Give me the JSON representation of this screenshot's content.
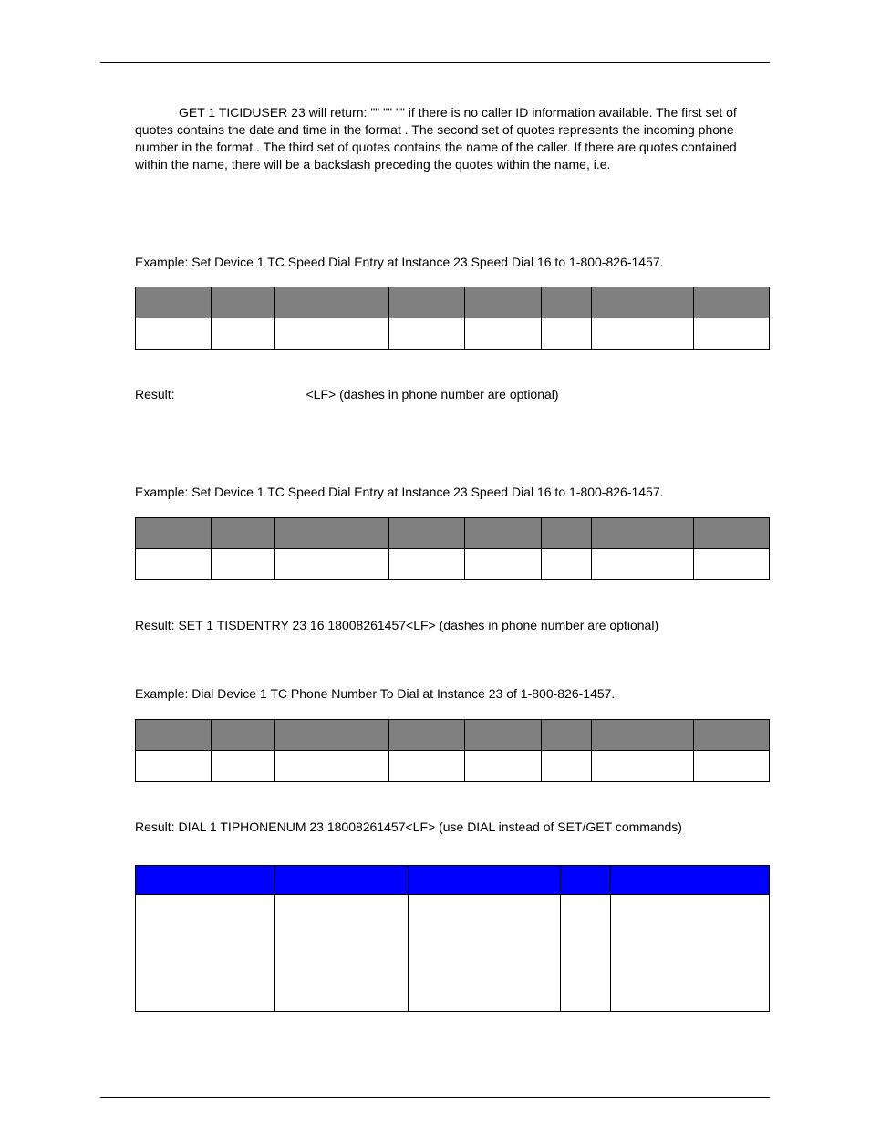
{
  "para1": "GET 1 TICIDUSER 23 will return: \"\" \"\" \"\" if there is no caller ID information available.  The first set of quotes contains the date and time in the format                     .  The second set of quotes represents the incoming phone number in the format                        .  The third set of quotes contains the name of the caller.   If there are quotes contained within the name, there will be a backslash preceding the quotes within the name, i.e.",
  "example1": "Example: Set Device 1 TC Speed Dial Entry at Instance 23 Speed Dial 16 to 1-800-826-1457.",
  "result1": "Result:                                     <LF> (dashes in phone number are optional)",
  "example2": "Example: Set Device 1 TC Speed Dial Entry at Instance 23 Speed Dial 16 to 1-800-826-1457.",
  "result2": "Result: SET 1 TISDENTRY 23 16 18008261457<LF> (dashes in phone number are optional)",
  "example3": "Example: Dial Device 1 TC Phone Number To Dial at Instance 23 of 1-800-826-1457.",
  "result3": "Result: DIAL 1 TIPHONENUM 23 18008261457<LF> (use DIAL instead of SET/GET commands)",
  "table8": {
    "col_widths_pct": [
      12,
      10,
      18,
      12,
      12,
      8,
      16,
      12
    ]
  },
  "table5": {
    "col_widths_pct": [
      22,
      21,
      24,
      8,
      25
    ]
  },
  "colors": {
    "gray": "#808080",
    "blue": "#0000ff",
    "border": "#000000",
    "bg": "#ffffff",
    "text": "#000000"
  }
}
